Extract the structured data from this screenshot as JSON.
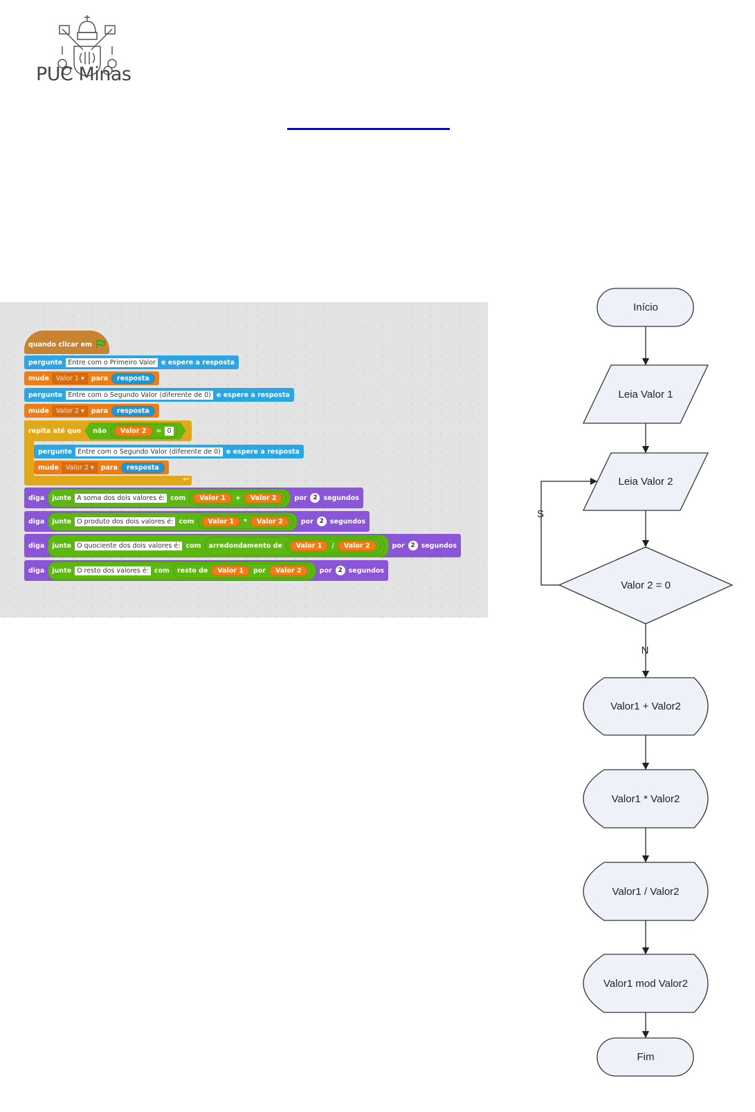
{
  "header": {
    "logo_text": "PUC Minas"
  },
  "scratch": {
    "hat": {
      "label": "quando clicar em",
      "icon": "green-flag-icon"
    },
    "ask1": {
      "verb": "pergunte",
      "text": "Entre com o Primeiro Valor",
      "tail": "e espere a resposta"
    },
    "set1": {
      "verb": "mude",
      "var": "Valor 1",
      "to": "para",
      "value": "resposta"
    },
    "ask2": {
      "verb": "pergunte",
      "text": "Entre com o Segundo Valor (diferente de 0)",
      "tail": "e espere a resposta"
    },
    "set2": {
      "verb": "mude",
      "var": "Valor 2",
      "to": "para",
      "value": "resposta"
    },
    "repeat": {
      "label": "repita até que",
      "not": "não",
      "var": "Valor 2",
      "eq": "=",
      "value": "0"
    },
    "ask3": {
      "verb": "pergunte",
      "text": "Entre com o Segundo Valor (diferente de 0)",
      "tail": "e espere a resposta"
    },
    "set3": {
      "verb": "mude",
      "var": "Valor 2",
      "to": "para",
      "value": "resposta"
    },
    "say": [
      {
        "verb": "diga",
        "join": "junte",
        "text": "A soma dos dois valores é:",
        "with": "com",
        "a": "Valor 1",
        "op": "+",
        "b": "Valor 2",
        "by": "por",
        "secs": "2",
        "unit": "segundos"
      },
      {
        "verb": "diga",
        "join": "junte",
        "text": "O produto dos dois valores é:",
        "with": "com",
        "a": "Valor 1",
        "op": "*",
        "b": "Valor 2",
        "by": "por",
        "secs": "2",
        "unit": "segundos"
      },
      {
        "verb": "diga",
        "join": "junte",
        "text": "O quociente dos dois valores é:",
        "with": "com",
        "fn": "arredondamento de",
        "a": "Valor 1",
        "op": "/",
        "b": "Valor 2",
        "by": "por",
        "secs": "2",
        "unit": "segundos"
      },
      {
        "verb": "diga",
        "join": "junte",
        "text": "O resto dos valores é:",
        "with": "com",
        "fn": "resto de",
        "a": "Valor 1",
        "op": "por",
        "b": "Valor 2",
        "by": "por",
        "secs": "2",
        "unit": "segundos"
      }
    ]
  },
  "flowchart": {
    "start": "Início",
    "read1": "Leia Valor 1",
    "read2": "Leia Valor 2",
    "decision": "Valor 2 = 0",
    "yes": "S",
    "no": "N",
    "sum": "Valor1 + Valor2",
    "prod": "Valor1 * Valor2",
    "div": "Valor1 / Valor2",
    "mod": "Valor1 mod Valor2",
    "end": "Fim"
  }
}
